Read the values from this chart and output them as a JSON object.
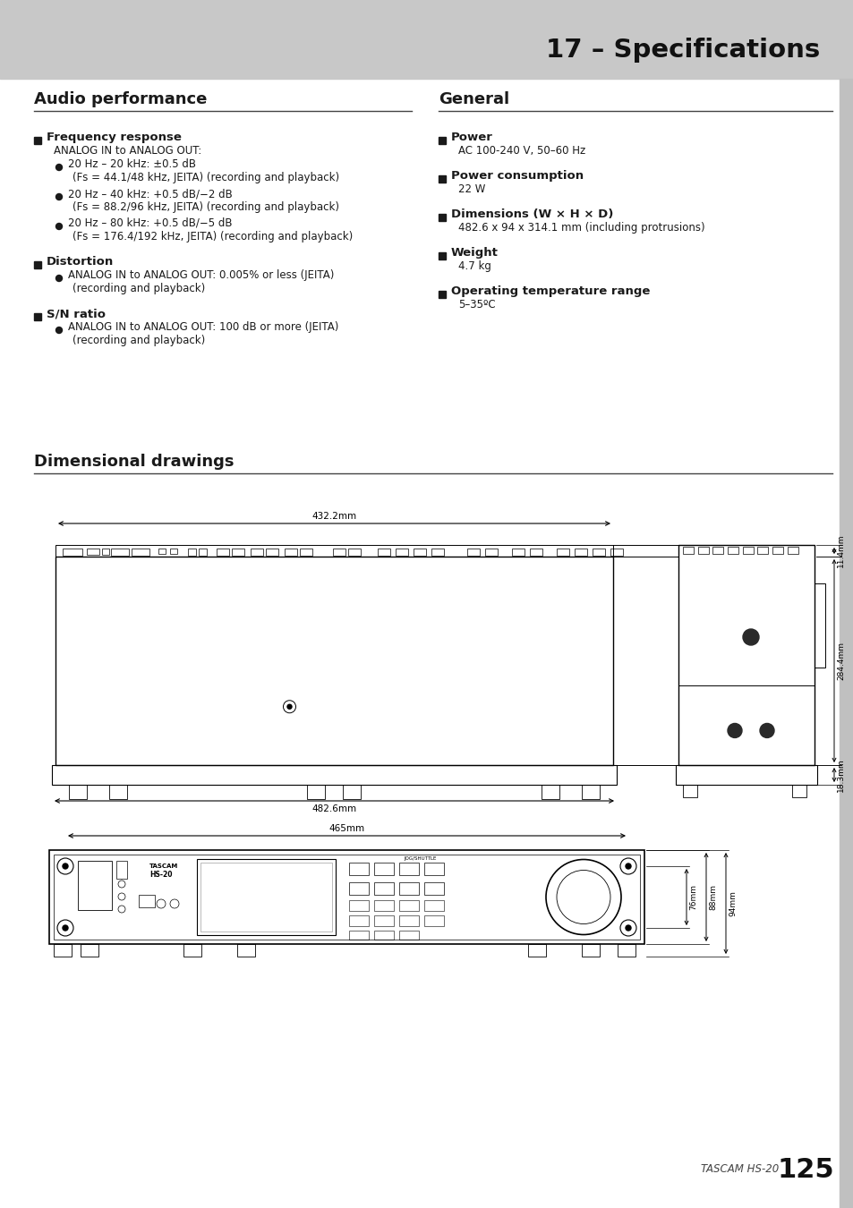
{
  "page_title": "17 – Specifications",
  "section1_title": "Audio performance",
  "section2_title": "General",
  "section3_title": "Dimensional drawings",
  "audio_items": [
    {
      "heading": "Frequency response",
      "sub_intro": "ANALOG IN to ANALOG OUT:",
      "bullets": [
        [
          "20 Hz – 20 kHz: ±0.5 dB",
          "(Fs = 44.1/48 kHz, JEITA) (recording and playback)"
        ],
        [
          "20 Hz – 40 kHz: +0.5 dB/−2 dB",
          "(Fs = 88.2/96 kHz, JEITA) (recording and playback)"
        ],
        [
          "20 Hz – 80 kHz: +0.5 dB/−5 dB",
          "(Fs = 176.4/192 kHz, JEITA) (recording and playback)"
        ]
      ]
    },
    {
      "heading": "Distortion",
      "sub_intro": null,
      "bullets": [
        [
          "ANALOG IN to ANALOG OUT: 0.005% or less (JEITA)",
          "(recording and playback)"
        ]
      ]
    },
    {
      "heading": "S/N ratio",
      "sub_intro": null,
      "bullets": [
        [
          "ANALOG IN to ANALOG OUT: 100 dB or more (JEITA)",
          "(recording and playback)"
        ]
      ]
    }
  ],
  "general_items": [
    {
      "heading": "Power",
      "value": "AC 100-240 V, 50–60 Hz"
    },
    {
      "heading": "Power consumption",
      "value": "22 W"
    },
    {
      "heading": "Dimensions (W × H × D)",
      "value": "482.6 x 94 x 314.1 mm (including protrusions)"
    },
    {
      "heading": "Weight",
      "value": "4.7 kg"
    },
    {
      "heading": "Operating temperature range",
      "value": "5–35ºC"
    }
  ],
  "dim_432": "432.2mm",
  "dim_482": "482.6mm",
  "dim_465": "465mm",
  "dim_11": "11.4mm",
  "dim_284": "284.4mm",
  "dim_18": "18.3mm",
  "dim_76": "76mm",
  "dim_88": "88mm",
  "dim_94": "94mm",
  "bg_color": "#ffffff",
  "header_bg": "#c8c8c8",
  "text_dark": "#1a1a1a",
  "footer_italic": "TASCAM HS-20",
  "footer_bold": "125"
}
